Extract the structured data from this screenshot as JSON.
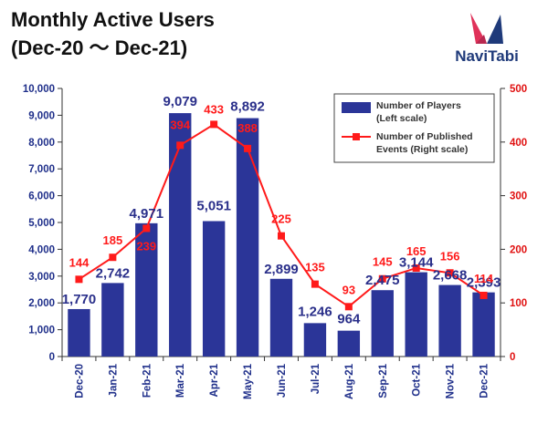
{
  "title_line1": "Monthly Active Users",
  "title_line2": "(Dec-20 〜 Dec-21)",
  "logo_text": "NaviTabi",
  "colors": {
    "bar": "#2b3598",
    "line": "#ff1a1a",
    "left_axis": "#1f2f8a",
    "right_axis": "#e01010"
  },
  "chart_data": {
    "type": "bar",
    "categories": [
      "Dec-20",
      "Jan-21",
      "Feb-21",
      "Mar-21",
      "Apr-21",
      "May-21",
      "Jun-21",
      "Jul-21",
      "Aug-21",
      "Sep-21",
      "Oct-21",
      "Nov-21",
      "Dec-21"
    ],
    "series": [
      {
        "name": "Number of Players (Left scale)",
        "type": "bar",
        "axis": "left",
        "values": [
          1770,
          2742,
          4971,
          9079,
          5051,
          8892,
          2899,
          1246,
          964,
          2475,
          3144,
          2668,
          2393
        ]
      },
      {
        "name": "Number of Published Events (Right scale)",
        "type": "line",
        "axis": "right",
        "values": [
          144,
          185,
          239,
          394,
          433,
          388,
          225,
          135,
          93,
          145,
          165,
          156,
          114
        ]
      }
    ],
    "bar_labels": [
      "1,770",
      "2,742",
      "4,971",
      "9,079",
      "5,051",
      "8,892",
      "2,899",
      "1,246",
      "964",
      "2,475",
      "3,144",
      "2,668",
      "2,393"
    ],
    "line_labels": [
      "144",
      "185",
      "239",
      "394",
      "433",
      "388",
      "225",
      "135",
      "93",
      "145",
      "165",
      "156",
      "114"
    ],
    "left_axis": {
      "ylim": [
        0,
        10000
      ],
      "ticks": [
        "0",
        "1,000",
        "2,000",
        "3,000",
        "4,000",
        "5,000",
        "6,000",
        "7,000",
        "8,000",
        "9,000",
        "10,000"
      ]
    },
    "right_axis": {
      "ylim": [
        0,
        500
      ],
      "ticks": [
        "0",
        "100",
        "200",
        "300",
        "400",
        "500"
      ]
    },
    "legend": {
      "position": "top-right",
      "bar_label_1": "Number of Players",
      "bar_label_2": "(Left scale)",
      "line_label_1": "Number of Published",
      "line_label_2": "Events (Right scale)"
    },
    "grid": false
  }
}
